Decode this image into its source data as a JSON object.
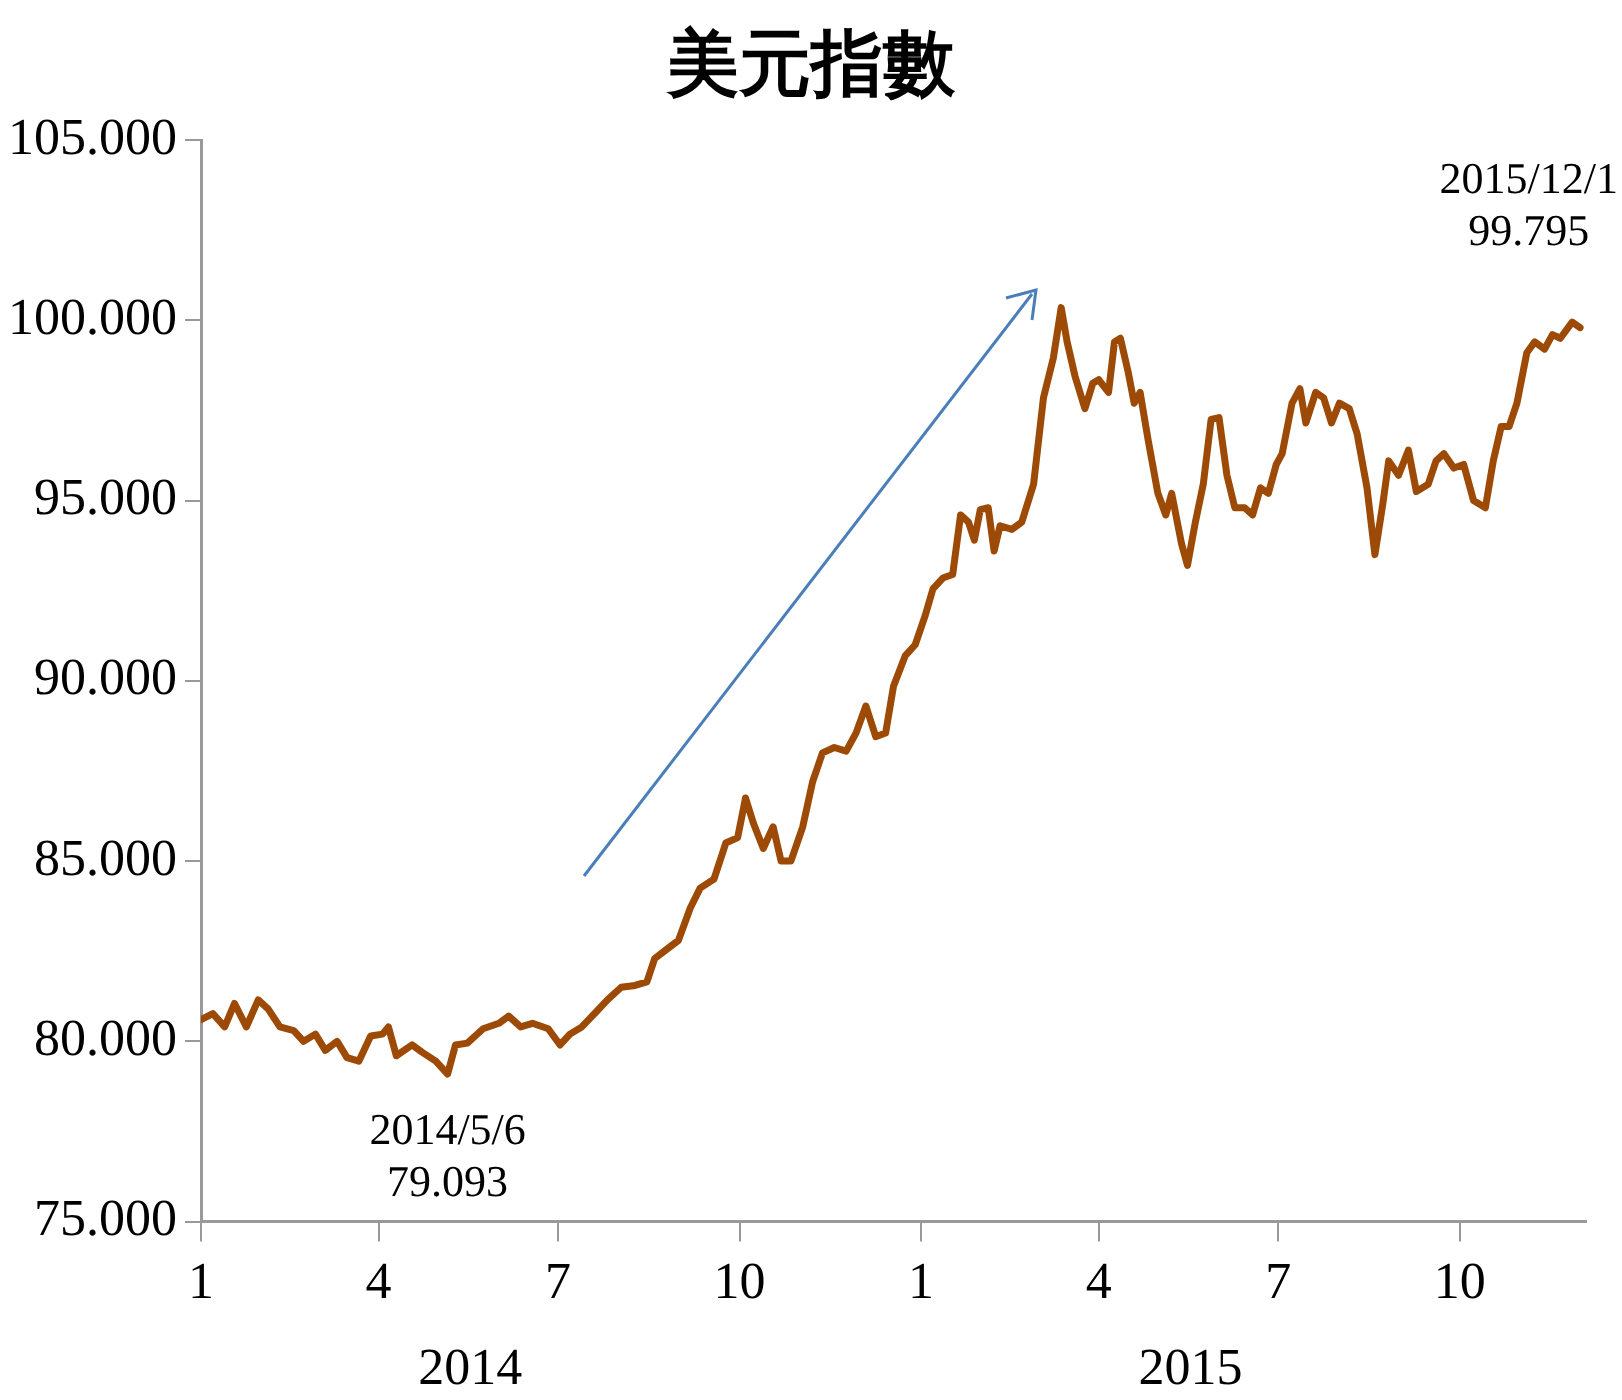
{
  "chart_data": {
    "type": "line",
    "title": "美元指數",
    "x": [
      "2014-01-01",
      "2014-01-07",
      "2014-01-13",
      "2014-01-18",
      "2014-01-24",
      "2014-01-30",
      "2014-02-04",
      "2014-02-10",
      "2014-02-17",
      "2014-02-22",
      "2014-02-28",
      "2014-03-05",
      "2014-03-11",
      "2014-03-16",
      "2014-03-22",
      "2014-03-28",
      "2014-04-03",
      "2014-04-06",
      "2014-04-10",
      "2014-04-18",
      "2014-04-23",
      "2014-04-30",
      "2014-05-06",
      "2014-05-10",
      "2014-05-16",
      "2014-05-24",
      "2014-06-01",
      "2014-06-06",
      "2014-06-12",
      "2014-06-18",
      "2014-06-26",
      "2014-07-02",
      "2014-07-07",
      "2014-07-13",
      "2014-07-20",
      "2014-07-26",
      "2014-08-02",
      "2014-08-09",
      "2014-08-15",
      "2014-08-19",
      "2014-08-25",
      "2014-08-31",
      "2014-09-06",
      "2014-09-11",
      "2014-09-18",
      "2014-09-24",
      "2014-09-30",
      "2014-10-04",
      "2014-10-08",
      "2014-10-13",
      "2014-10-18",
      "2014-10-22",
      "2014-10-27",
      "2014-11-02",
      "2014-11-07",
      "2014-11-12",
      "2014-11-18",
      "2014-11-24",
      "2014-11-29",
      "2014-12-04",
      "2014-12-09",
      "2014-12-14",
      "2014-12-18",
      "2014-12-24",
      "2014-12-29",
      "2015-01-03",
      "2015-01-07",
      "2015-01-12",
      "2015-01-17",
      "2015-01-21",
      "2015-01-25",
      "2015-01-28",
      "2015-01-31",
      "2015-02-04",
      "2015-02-07",
      "2015-02-10",
      "2015-02-16",
      "2015-02-21",
      "2015-02-27",
      "2015-03-04",
      "2015-03-09",
      "2015-03-13",
      "2015-03-16",
      "2015-03-20",
      "2015-03-25",
      "2015-03-29",
      "2015-04-01",
      "2015-04-06",
      "2015-04-09",
      "2015-04-12",
      "2015-04-16",
      "2015-04-19",
      "2015-04-22",
      "2015-04-26",
      "2015-05-01",
      "2015-05-05",
      "2015-05-08",
      "2015-05-13",
      "2015-05-16",
      "2015-05-20",
      "2015-05-24",
      "2015-05-28",
      "2015-06-01",
      "2015-06-05",
      "2015-06-09",
      "2015-06-14",
      "2015-06-18",
      "2015-06-22",
      "2015-06-26",
      "2015-06-30",
      "2015-07-03",
      "2015-07-08",
      "2015-07-12",
      "2015-07-15",
      "2015-07-20",
      "2015-07-24",
      "2015-07-28",
      "2015-08-01",
      "2015-08-06",
      "2015-08-10",
      "2015-08-15",
      "2015-08-19",
      "2015-08-23",
      "2015-08-26",
      "2015-08-31",
      "2015-09-05",
      "2015-09-09",
      "2015-09-15",
      "2015-09-19",
      "2015-09-23",
      "2015-09-28",
      "2015-10-03",
      "2015-10-08",
      "2015-10-14",
      "2015-10-18",
      "2015-10-22",
      "2015-10-26",
      "2015-10-30",
      "2015-11-04",
      "2015-11-08",
      "2015-11-13",
      "2015-11-17",
      "2015-11-21",
      "2015-11-27",
      "2015-12-01"
    ],
    "series": [
      {
        "color": "#9c4a06",
        "values": [
          80.6,
          80.77,
          80.4,
          81.05,
          80.4,
          81.15,
          80.9,
          80.4,
          80.3,
          80.0,
          80.2,
          79.75,
          80.0,
          79.55,
          79.45,
          80.15,
          80.2,
          80.4,
          79.6,
          79.9,
          79.7,
          79.45,
          79.093,
          79.9,
          79.95,
          80.35,
          80.5,
          80.7,
          80.4,
          80.5,
          80.35,
          79.9,
          80.2,
          80.4,
          80.8,
          81.15,
          81.5,
          81.55,
          81.65,
          82.3,
          82.55,
          82.8,
          83.7,
          84.25,
          84.5,
          85.5,
          85.65,
          86.75,
          86.05,
          85.35,
          85.95,
          85.0,
          85.0,
          85.95,
          87.2,
          88.0,
          88.15,
          88.05,
          88.55,
          89.3,
          88.45,
          88.55,
          89.85,
          90.7,
          91.0,
          91.8,
          92.55,
          92.85,
          92.95,
          94.6,
          94.4,
          93.9,
          94.75,
          94.8,
          93.6,
          94.3,
          94.2,
          94.4,
          95.45,
          97.85,
          98.95,
          100.35,
          99.4,
          98.45,
          97.55,
          98.25,
          98.35,
          98.0,
          99.4,
          99.5,
          98.55,
          97.7,
          98.0,
          96.7,
          95.2,
          94.6,
          95.2,
          93.8,
          93.2,
          94.4,
          95.45,
          97.25,
          97.3,
          95.7,
          94.8,
          94.8,
          94.6,
          95.35,
          95.2,
          96.0,
          96.3,
          97.7,
          98.1,
          97.15,
          98.0,
          97.85,
          97.15,
          97.7,
          97.55,
          96.85,
          95.35,
          93.5,
          94.9,
          96.1,
          95.7,
          96.4,
          95.25,
          95.45,
          96.1,
          96.3,
          95.9,
          96.0,
          95.0,
          94.8,
          96.1,
          97.05,
          97.05,
          97.7,
          99.1,
          99.4,
          99.2,
          99.6,
          99.5,
          99.95,
          99.795
        ]
      }
    ],
    "xlim": [
      "2014-01-01",
      "2015-12-04"
    ],
    "xticks": [
      {
        "value": "2014-01-01",
        "label": "1"
      },
      {
        "value": "2014-04-01",
        "label": "4"
      },
      {
        "value": "2014-07-01",
        "label": "7"
      },
      {
        "value": "2014-10-01",
        "label": "10"
      },
      {
        "value": "2015-01-01",
        "label": "1"
      },
      {
        "value": "2015-04-01",
        "label": "4"
      },
      {
        "value": "2015-07-01",
        "label": "7"
      },
      {
        "value": "2015-10-01",
        "label": "10"
      }
    ],
    "ylim": [
      75,
      105
    ],
    "yticks": [
      {
        "value": 75,
        "label": "75.000"
      },
      {
        "value": 80,
        "label": "80.000"
      },
      {
        "value": 85,
        "label": "85.000"
      },
      {
        "value": 90,
        "label": "90.000"
      },
      {
        "value": 95,
        "label": "95.000"
      },
      {
        "value": 100,
        "label": "100.000"
      },
      {
        "value": 105,
        "label": "105.000"
      }
    ],
    "annotations": [
      {
        "text": "2014/5/6\n79.093",
        "x": "2014-05-06",
        "y": 79.093
      },
      {
        "text": "2015/12/1\n99.795",
        "x": "2015-12-01",
        "y": 99.795
      },
      "2014",
      "2015"
    ],
    "grid": false,
    "legend": false,
    "marker": "none",
    "line_style": "solid"
  }
}
